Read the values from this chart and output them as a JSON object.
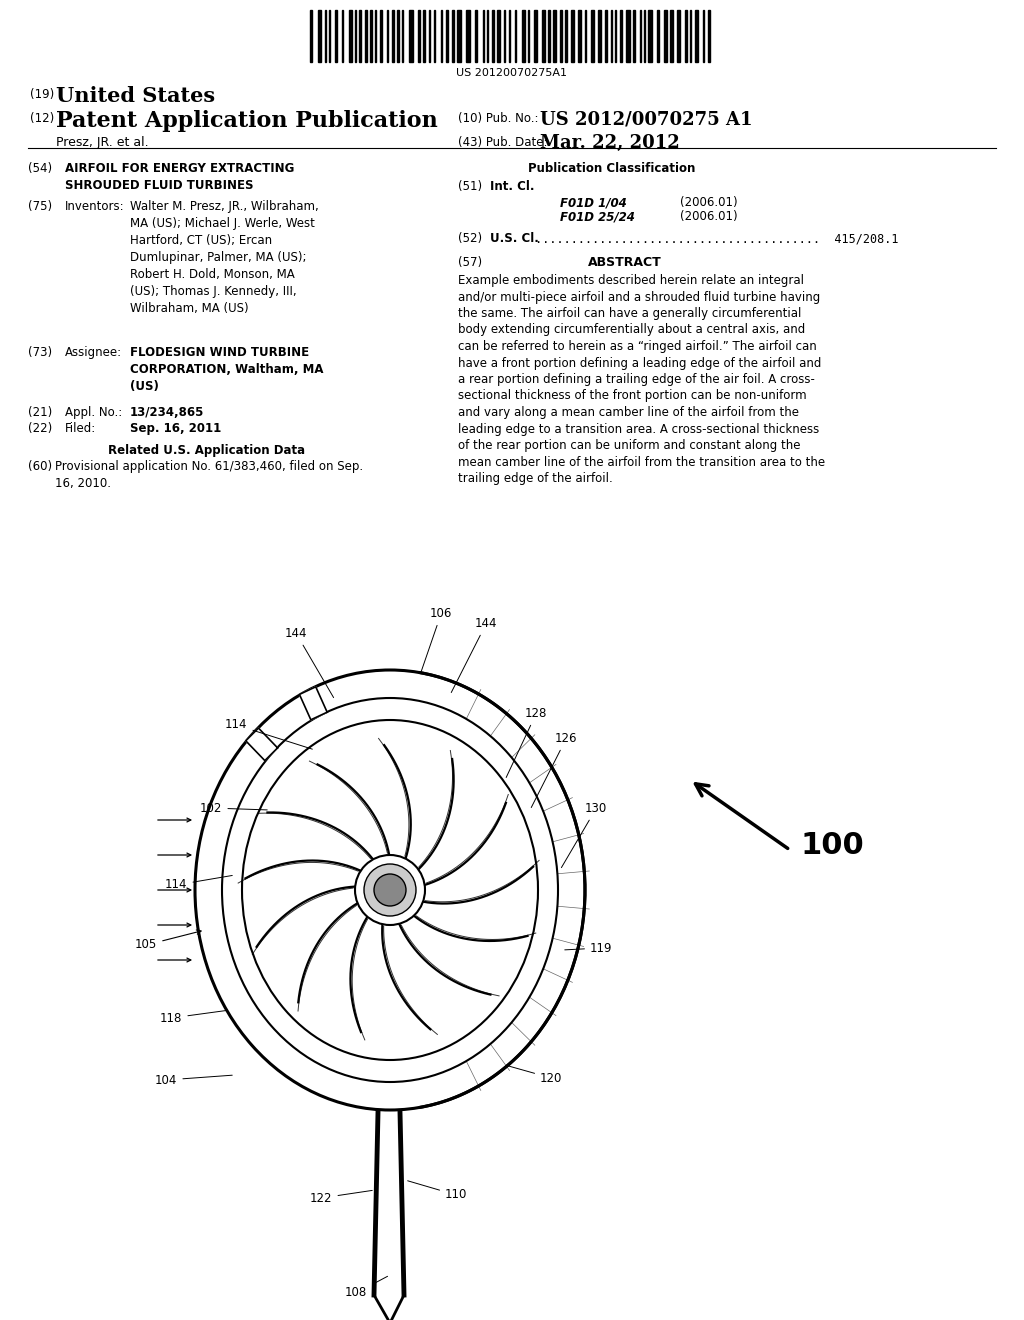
{
  "bg_color": "#ffffff",
  "title_doc": "US 20120070275A1",
  "header_line1_num": "(19)",
  "header_line1_text": "United States",
  "header_line2_num": "(12)",
  "header_line2_text": "Patent Application Publication",
  "header_pub_num_label": "(10) Pub. No.:",
  "header_pub_num_val": "US 2012/0070275 A1",
  "header_author": "Presz, JR. et al.",
  "header_date_label": "(43) Pub. Date:",
  "header_date_val": "Mar. 22, 2012",
  "field54_label": "(54)",
  "field54_text": "AIRFOIL FOR ENERGY EXTRACTING\nSHROUDED FLUID TURBINES",
  "field75_label": "(75)",
  "field75_key": "Inventors:",
  "field75_val_bold": "Walter M. Presz, JR.,",
  "field75_val_norm": " Wilbraham,\nMA (US); ",
  "field75_val2_bold": "Michael J. Werle,",
  "field75_val2_norm": " West\nHartford, CT (US); ",
  "field75_val3_bold": "Ercan\nDumlupinar,",
  "field75_val3_norm": " Palmer, MA (US);\n",
  "field75_val4_bold": "Robert H. Dold,",
  "field75_val4_norm": " Monson, MA\n(US); ",
  "field75_val5_bold": "Thomas J. Kennedy, III,",
  "field75_val5_norm": "\nWilbraham, MA (US)",
  "field75_full": "Walter M. Presz, JR., Wilbraham,\nMA (US); Michael J. Werle, West\nHartford, CT (US); Ercan\nDumlupinar, Palmer, MA (US);\nRobert H. Dold, Monson, MA\n(US); Thomas J. Kennedy, III,\nWilbraham, MA (US)",
  "field73_label": "(73)",
  "field73_key": "Assignee:",
  "field73_text": "FLODESIGN WIND TURBINE\nCORPORATION, Waltham, MA\n(US)",
  "field21_label": "(21)",
  "field21_key": "Appl. No.:",
  "field21_text": "13/234,865",
  "field22_label": "(22)",
  "field22_key": "Filed:",
  "field22_text": "Sep. 16, 2011",
  "related_header": "Related U.S. Application Data",
  "field60_label": "(60)",
  "field60_text": "Provisional application No. 61/383,460, filed on Sep.\n16, 2010.",
  "pub_class_header": "Publication Classification",
  "field51_label": "(51)",
  "field51_key": "Int. Cl.",
  "field51_class1": "F01D 1/04",
  "field51_year1": "(2006.01)",
  "field51_class2": "F01D 25/24",
  "field51_year2": "(2006.01)",
  "field52_label": "(52)",
  "field52_key": "U.S. Cl.",
  "field52_text": "415/208.1",
  "field57_label": "(57)",
  "field57_header": "ABSTRACT",
  "abstract_text": "Example embodiments described herein relate an integral\nand/or multi-piece airfoil and a shrouded fluid turbine having\nthe same. The airfoil can have a generally circumferential\nbody extending circumferentially about a central axis, and\ncan be referred to herein as a “ringed airfoil.” The airfoil can\nhave a front portion defining a leading edge of the airfoil and\na rear portion defining a trailing edge of the air foil. A cross-\nsectional thickness of the front portion can be non-uniform\nand vary along a mean camber line of the airfoil from the\nleading edge to a transition area. A cross-sectional thickness\nof the rear portion can be uniform and constant along the\nmean camber line of the airfoil from the transition area to the\ntrailing edge of the airfoil."
}
